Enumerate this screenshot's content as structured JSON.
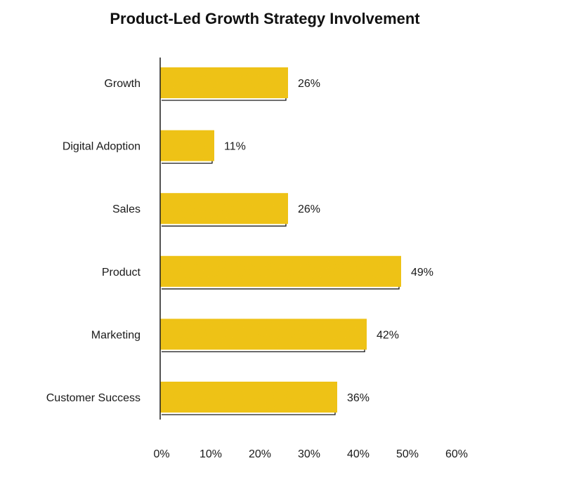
{
  "chart_data": {
    "type": "bar",
    "orientation": "horizontal",
    "title": "Product-Led Growth Strategy Involvement",
    "categories": [
      "Growth",
      "Digital Adoption",
      "Sales",
      "Product",
      "Marketing",
      "Customer Success"
    ],
    "values": [
      26,
      11,
      26,
      49,
      42,
      36
    ],
    "value_labels": [
      "26%",
      "11%",
      "26%",
      "49%",
      "42%",
      "36%"
    ],
    "xlim": [
      0,
      60
    ],
    "xticks": [
      0,
      10,
      20,
      30,
      40,
      50,
      60
    ],
    "xtick_labels": [
      "0%",
      "10%",
      "20%",
      "30%",
      "40%",
      "50%",
      "60%"
    ],
    "xlabel": "",
    "ylabel": "",
    "grid": false,
    "legend": "none",
    "colors": {
      "bar": "#f2c41c",
      "bar_shadow": "#1a1a1a",
      "axis": "#1a1a1a",
      "text": "#1a1a1a"
    }
  }
}
